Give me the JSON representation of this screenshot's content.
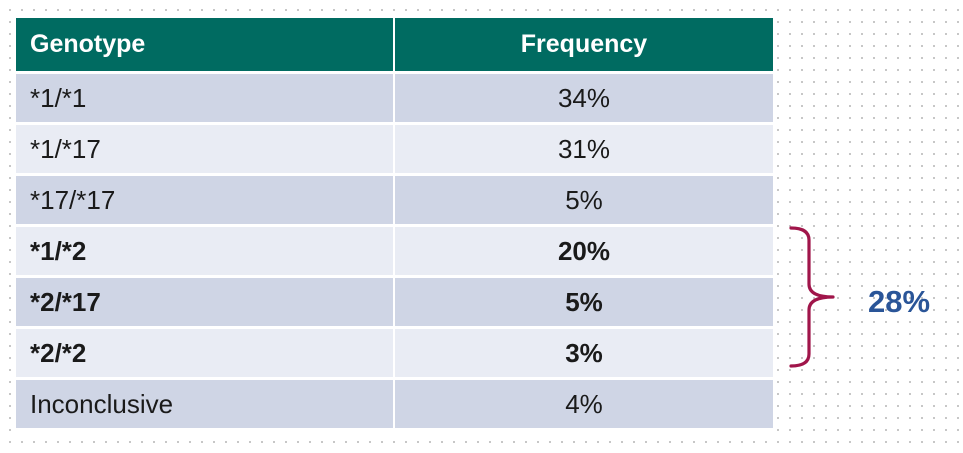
{
  "table": {
    "headers": {
      "genotype": "Genotype",
      "frequency": "Frequency"
    },
    "rows": [
      {
        "genotype": "*1/*1",
        "frequency": "34%",
        "bold": false
      },
      {
        "genotype": "*1/*17",
        "frequency": "31%",
        "bold": false
      },
      {
        "genotype": "*17/*17",
        "frequency": "5%",
        "bold": false
      },
      {
        "genotype": "*1/*2",
        "frequency": "20%",
        "bold": true
      },
      {
        "genotype": "*2/*17",
        "frequency": "5%",
        "bold": true
      },
      {
        "genotype": "*2/*2",
        "frequency": "3%",
        "bold": true
      },
      {
        "genotype": "Inconclusive",
        "frequency": "4%",
        "bold": false
      }
    ]
  },
  "annotation": {
    "summary": "28%",
    "brace_color": "#a0154a",
    "summary_color": "#2a5598"
  },
  "colors": {
    "header_bg": "#006b61",
    "row_dark": "#cfd5e5",
    "row_light": "#e9ecf4"
  }
}
